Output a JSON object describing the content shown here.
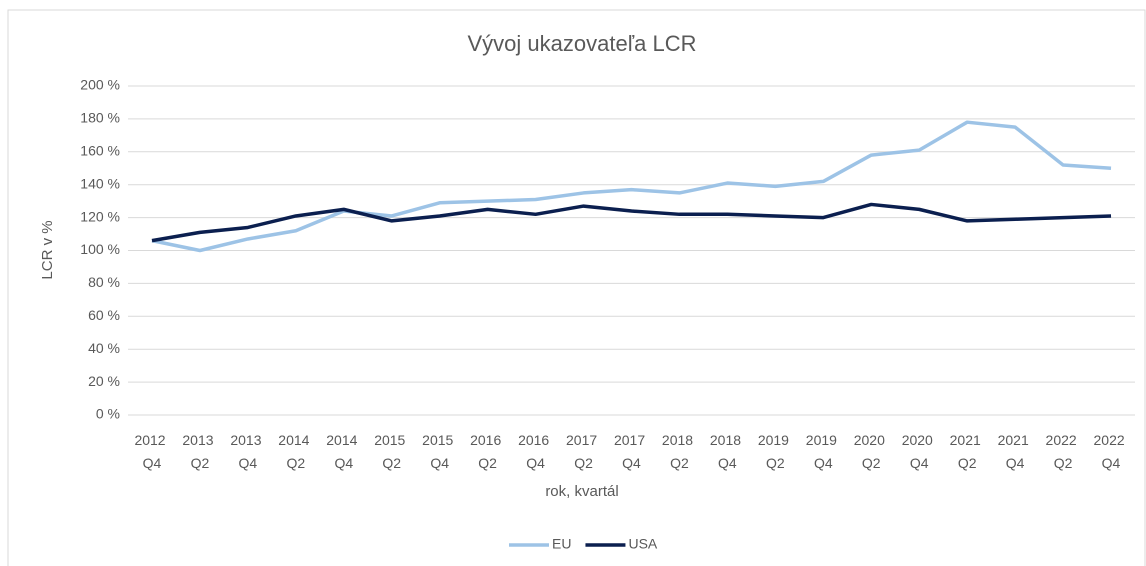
{
  "chart_data": {
    "type": "line",
    "title": "Vývoj ukazovateľa LCR",
    "x_label": "rok, kvartál",
    "y_label": "LCR v %",
    "categories": [
      "2012 Q4",
      "2013 Q2",
      "2013 Q4",
      "2014 Q2",
      "2014 Q4",
      "2015 Q2",
      "2015 Q4",
      "2016 Q2",
      "2016 Q4",
      "2017 Q2",
      "2017 Q4",
      "2018 Q2",
      "2018 Q4",
      "2019 Q2",
      "2019 Q4",
      "2020 Q2",
      "2020 Q4",
      "2021 Q2",
      "2021 Q4",
      "2022 Q2",
      "2022 Q4"
    ],
    "series": [
      {
        "name": "EU",
        "color": "#9dc3e6",
        "values": [
          106,
          100,
          107,
          112,
          124,
          121,
          129,
          130,
          131,
          135,
          137,
          135,
          141,
          139,
          142,
          158,
          161,
          178,
          175,
          152,
          150
        ]
      },
      {
        "name": "USA",
        "color": "#0b1f4f",
        "values": [
          106,
          111,
          114,
          121,
          125,
          118,
          121,
          125,
          122,
          127,
          124,
          122,
          122,
          121,
          120,
          128,
          125,
          118,
          119,
          120,
          121
        ]
      }
    ],
    "ylim": [
      0,
      200
    ],
    "yticks": [
      {
        "value": 0,
        "label": "0 %"
      },
      {
        "value": 20,
        "label": "20 %"
      },
      {
        "value": 40,
        "label": "40 %"
      },
      {
        "value": 60,
        "label": "60 %"
      },
      {
        "value": 80,
        "label": "80 %"
      },
      {
        "value": 100,
        "label": "100 %"
      },
      {
        "value": 120,
        "label": "120 %"
      },
      {
        "value": 140,
        "label": "140 %"
      },
      {
        "value": 160,
        "label": "160 %"
      },
      {
        "value": 180,
        "label": "180 %"
      },
      {
        "value": 200,
        "label": "200 %"
      }
    ],
    "grid": true,
    "legend": "bottom"
  }
}
